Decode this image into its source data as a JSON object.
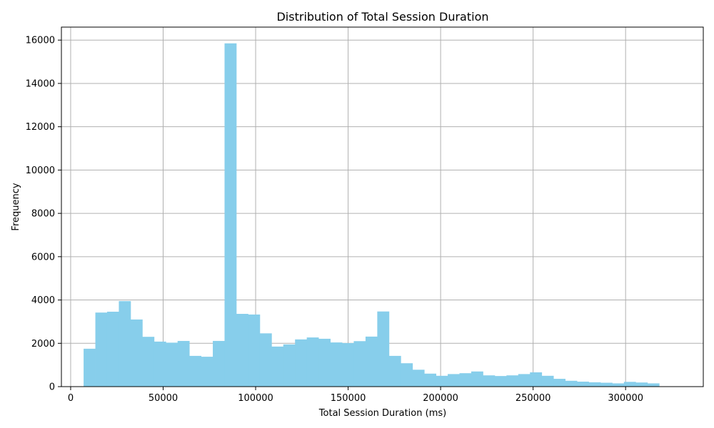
{
  "chart_data": {
    "type": "histogram",
    "title": "Distribution of Total Session Duration",
    "xlabel": "Total Session Duration (ms)",
    "ylabel": "Frequency",
    "bar_color": "#87CEEB",
    "grid": true,
    "xlim": [
      -5000,
      342000
    ],
    "ylim": [
      0,
      16600
    ],
    "x_ticks": [
      0,
      50000,
      100000,
      150000,
      200000,
      250000,
      300000
    ],
    "y_ticks": [
      0,
      2000,
      4000,
      6000,
      8000,
      10000,
      12000,
      14000,
      16000
    ],
    "bin_start": 7000,
    "bin_width": 6350,
    "values": [
      1750,
      3420,
      3460,
      3950,
      3100,
      2300,
      2080,
      2030,
      2110,
      1420,
      1380,
      2110,
      15850,
      3360,
      3330,
      2460,
      1850,
      1950,
      2180,
      2270,
      2210,
      2040,
      2010,
      2100,
      2310,
      3470,
      1420,
      1080,
      780,
      600,
      500,
      580,
      620,
      700,
      520,
      490,
      520,
      580,
      660,
      500,
      360,
      270,
      230,
      200,
      180,
      150,
      220,
      190,
      150
    ]
  }
}
